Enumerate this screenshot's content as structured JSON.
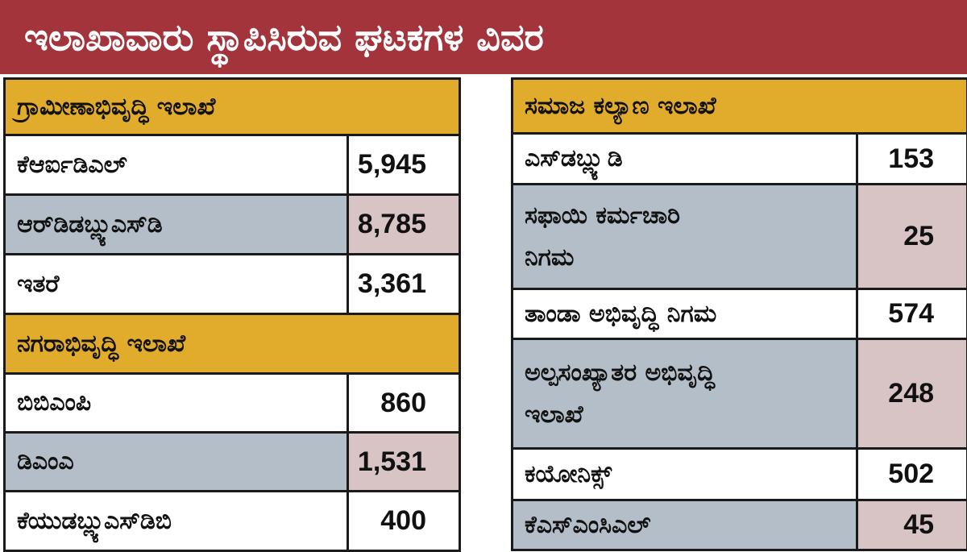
{
  "title": "ಇಲಾಖಾವಾರು ಸ್ಥಾಪಿಸಿರುವ ಘಟಕಗಳ ವಿವರ",
  "colors": {
    "banner": "#a3343c",
    "section_header": "#e1ac2c",
    "alt_label": "#b3bec8",
    "alt_value": "#d8c4c4",
    "plain": "#ffffff",
    "border": "#1a1a1a"
  },
  "left": {
    "rural": {
      "header": "ಗ್ರಾಮೀಣಾಭಿವೃದ್ಧಿ ಇಲಾಖೆ",
      "rows": [
        {
          "label": "ಕೆಆರ್ಐಡಿಎಲ್",
          "value": "5,945"
        },
        {
          "label": "ಆರ್‌ಡಿಡಬ್ಲ್ಯುಎಸ್‌ಡಿ",
          "value": "8,785"
        },
        {
          "label": "ಇತರೆ",
          "value": "3,361"
        }
      ]
    },
    "urban": {
      "header": "ನಗರಾಭಿವೃದ್ಧಿ ಇಲಾಖೆ",
      "rows": [
        {
          "label": "ಬಿಬಿಎಂಪಿ",
          "value": "860"
        },
        {
          "label": "ಡಿಎಂಎ",
          "value": "1,531"
        },
        {
          "label": "ಕೆಯುಡಬ್ಲ್ಯುಎಸ್‌ಡಿಬಿ",
          "value": "400"
        }
      ]
    }
  },
  "right": {
    "social": {
      "header": "ಸಮಾಜ ಕಲ್ಯಾಣ ಇಲಾಖೆ",
      "rows": [
        {
          "label": "ಎಸ್‌ಡಬ್ಲ್ಯುಡಿ",
          "value": "153"
        },
        {
          "label_line1": "ಸಫಾಯಿ ಕರ್ಮಚಾರಿ",
          "label_line2": "ನಿಗಮ",
          "value": "25"
        },
        {
          "label": "ತಾಂಡಾ ಅಭಿವೃದ್ಧಿ ನಿಗಮ",
          "value": "574"
        },
        {
          "label_line1": "ಅಲ್ಪಸಂಖ್ಯಾತರ ಅಭಿವೃದ್ಧಿ",
          "label_line2": "ಇಲಾಖೆ",
          "value": "248"
        },
        {
          "label": "ಕಯೋನಿಕ್ಸ್",
          "value": "502"
        },
        {
          "label": "ಕೆಎಸ್‌ಎಂಸಿಎಲ್",
          "value": "45"
        }
      ]
    }
  }
}
